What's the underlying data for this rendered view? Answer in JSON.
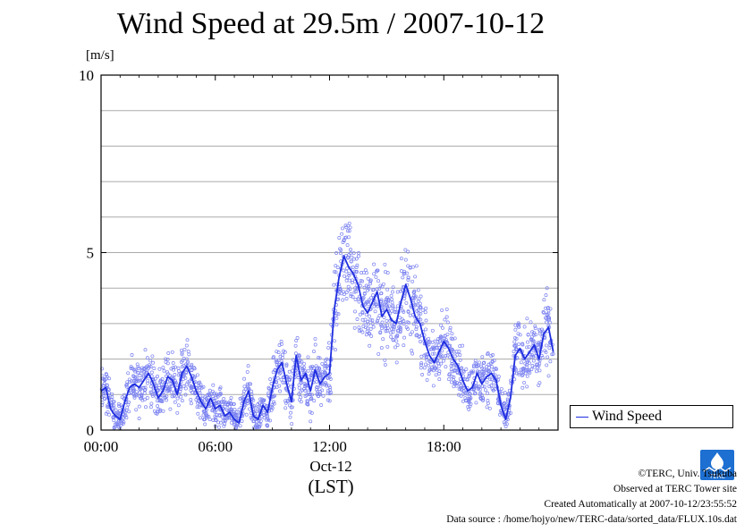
{
  "header": {
    "title": "Wind Speed at 29.5m / 2007-10-12",
    "unit_label": "[m/s]"
  },
  "axis": {
    "date_label": "Oct-12",
    "tz_label": "(LST)"
  },
  "legend": {
    "label": "Wind Speed",
    "color": "#1f2ee0"
  },
  "footer": {
    "copyright": "©TERC, Univ. Tsukuba",
    "site": "Observed at TERC Tower site",
    "created": "Created Automatically at 2007-10-12/23:55:52",
    "source": "Data source : /home/hojyo/new/TERC-data/sorted_data/FLUX.10s.dat",
    "logo_text": "TERC"
  },
  "chart_data": {
    "type": "line",
    "title": "Wind Speed at 29.5m / 2007-10-12",
    "ylabel": "[m/s]",
    "xlabel": "(LST)",
    "xlim": [
      0,
      24
    ],
    "ylim": [
      0,
      10
    ],
    "x_ticks": [
      0,
      6,
      12,
      18
    ],
    "x_tick_labels": [
      "00:00",
      "06:00",
      "12:00",
      "18:00"
    ],
    "y_ticks": [
      0,
      5,
      10
    ],
    "y_tick_labels": [
      "0",
      "5",
      "10"
    ],
    "grid": true,
    "legend_position": "right",
    "series": [
      {
        "name": "Wind Speed",
        "color": "#1f2ee0",
        "x": [
          0,
          0.25,
          0.5,
          0.75,
          1,
          1.25,
          1.5,
          1.75,
          2,
          2.25,
          2.5,
          2.75,
          3,
          3.25,
          3.5,
          3.75,
          4,
          4.25,
          4.5,
          4.75,
          5,
          5.25,
          5.5,
          5.75,
          6,
          6.25,
          6.5,
          6.75,
          7,
          7.25,
          7.5,
          7.75,
          8,
          8.25,
          8.5,
          8.75,
          9,
          9.25,
          9.5,
          9.75,
          10,
          10.25,
          10.5,
          10.75,
          11,
          11.25,
          11.5,
          11.75,
          12,
          12.25,
          12.5,
          12.75,
          13,
          13.25,
          13.5,
          13.75,
          14,
          14.25,
          14.5,
          14.75,
          15,
          15.25,
          15.5,
          15.75,
          16,
          16.25,
          16.5,
          16.75,
          17,
          17.25,
          17.5,
          17.75,
          18,
          18.25,
          18.5,
          18.75,
          19,
          19.25,
          19.5,
          19.75,
          20,
          20.25,
          20.5,
          20.75,
          21,
          21.25,
          21.5,
          21.75,
          22,
          22.25,
          22.5,
          22.75,
          23,
          23.25,
          23.5,
          23.75
        ],
        "y": [
          1.1,
          1.2,
          0.6,
          0.4,
          0.3,
          0.8,
          1.2,
          1.3,
          1.2,
          1.4,
          1.6,
          1.3,
          0.9,
          1.1,
          1.5,
          1.4,
          1.0,
          1.6,
          1.8,
          1.5,
          1.1,
          0.8,
          0.6,
          0.9,
          0.6,
          0.7,
          0.4,
          0.5,
          0.3,
          0.2,
          0.8,
          1.1,
          0.4,
          0.3,
          0.7,
          0.5,
          1.2,
          1.7,
          1.9,
          1.3,
          0.8,
          2.1,
          1.4,
          1.6,
          1.1,
          1.7,
          1.3,
          1.5,
          1.6,
          3.4,
          4.3,
          4.9,
          4.6,
          4.4,
          4.1,
          3.5,
          3.3,
          3.6,
          3.9,
          3.2,
          3.4,
          3.1,
          3.0,
          3.6,
          4.1,
          3.7,
          3.2,
          3.0,
          2.5,
          2.1,
          1.9,
          2.2,
          2.5,
          2.3,
          2.0,
          1.8,
          1.4,
          1.1,
          1.2,
          1.6,
          1.3,
          1.5,
          1.6,
          1.4,
          0.7,
          0.3,
          0.9,
          2.1,
          2.3,
          2.0,
          2.2,
          2.4,
          2.0,
          2.7,
          2.9,
          2.2
        ]
      }
    ]
  }
}
